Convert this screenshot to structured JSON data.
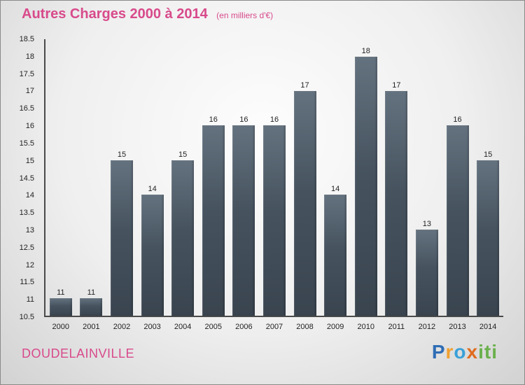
{
  "chart_data": {
    "type": "bar",
    "title": "Autres Charges 2000 à 2014",
    "subtitle": "(en milliers d'€)",
    "categories": [
      "2000",
      "2001",
      "2002",
      "2003",
      "2004",
      "2005",
      "2006",
      "2007",
      "2008",
      "2009",
      "2010",
      "2011",
      "2012",
      "2013",
      "2014"
    ],
    "values": [
      11,
      11,
      15,
      14,
      15,
      16,
      16,
      16,
      17,
      14,
      18,
      17,
      13,
      16,
      15
    ],
    "xlabel": "",
    "ylabel": "",
    "ylim": [
      10.5,
      18.5
    ],
    "ytick_step": 0.5,
    "grid": false,
    "legend": "none",
    "bar_color_top": "#64727f",
    "bar_color_bottom": "#39444f",
    "accent_color": "#d84a8b"
  },
  "footer": {
    "location": "DOUDELAINVILLE"
  },
  "logo": {
    "text": "Proxiti",
    "letters": [
      {
        "ch": "P",
        "color": "#2f6db5"
      },
      {
        "ch": "r",
        "color": "#f0a030"
      },
      {
        "ch": "o",
        "color": "#3aa0d8"
      },
      {
        "ch": "x",
        "color": "#e06c1f"
      },
      {
        "ch": "i",
        "color": "#6ab04c"
      },
      {
        "ch": "t",
        "color": "#6ab04c"
      },
      {
        "ch": "i",
        "color": "#6ab04c"
      }
    ]
  }
}
